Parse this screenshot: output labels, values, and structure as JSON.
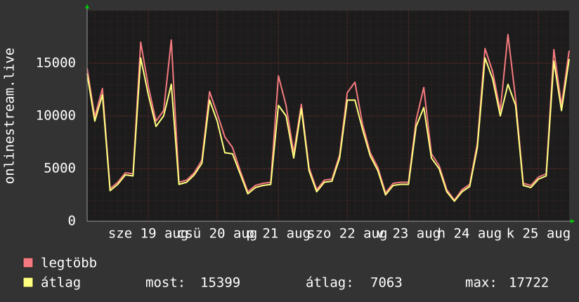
{
  "chart_data": {
    "type": "line",
    "y_label": "onlinestream.live",
    "categories": [
      null,
      null,
      null,
      null,
      null,
      null,
      null,
      null,
      "sze 19 aug",
      null,
      null,
      null,
      null,
      null,
      null,
      null,
      null,
      "csü 20 aug",
      null,
      null,
      null,
      null,
      null,
      null,
      null,
      "p 21 aug",
      null,
      null,
      null,
      null,
      null,
      null,
      null,
      null,
      "szo 22 aug",
      null,
      null,
      null,
      null,
      null,
      null,
      null,
      "v 23 aug",
      null,
      null,
      null,
      null,
      null,
      null,
      null,
      "h 24 aug",
      null,
      null,
      null,
      null,
      null,
      null,
      null,
      null,
      "k 25 aug",
      null,
      null,
      null,
      null
    ],
    "series": [
      {
        "name": "legtöbb",
        "color": "#f47a7f",
        "values": [
          14500,
          9900,
          12600,
          3100,
          3700,
          4600,
          4500,
          17000,
          12800,
          9500,
          10500,
          17200,
          3700,
          3900,
          4600,
          5800,
          12300,
          10200,
          8000,
          7000,
          4800,
          2800,
          3400,
          3600,
          3700,
          13800,
          11000,
          6500,
          11100,
          5100,
          3000,
          3900,
          4000,
          6300,
          12200,
          13200,
          9200,
          6500,
          5100,
          2700,
          3600,
          3700,
          3700,
          9600,
          12700,
          6400,
          5300,
          3000,
          2000,
          3000,
          3500,
          7400,
          16400,
          14200,
          10500,
          17722,
          11600,
          3600,
          3400,
          4200,
          4500,
          16300,
          11000,
          16200
        ]
      },
      {
        "name": "átlag",
        "color": "#ffff80",
        "values": [
          14000,
          9500,
          12000,
          2900,
          3500,
          4400,
          4300,
          15500,
          12000,
          9000,
          10000,
          13000,
          3500,
          3700,
          4400,
          5500,
          11500,
          9500,
          6500,
          6400,
          4500,
          2600,
          3200,
          3400,
          3500,
          11000,
          10000,
          6000,
          10700,
          4800,
          2800,
          3700,
          3800,
          6000,
          11500,
          11500,
          8700,
          6200,
          4800,
          2500,
          3400,
          3500,
          3500,
          9000,
          10800,
          6000,
          5000,
          2800,
          1900,
          2800,
          3300,
          7000,
          15500,
          13500,
          10000,
          13000,
          11000,
          3400,
          3200,
          4000,
          4300,
          15200,
          10500,
          15400
        ]
      }
    ],
    "ylim": [
      0,
      20000
    ],
    "yticks": [
      0,
      5000,
      10000,
      15000
    ],
    "grid": true,
    "stats": [
      {
        "label": "most:",
        "value": 15399
      },
      {
        "label": "átlag:",
        "value": 7063
      },
      {
        "label": "max:",
        "value": 17722
      }
    ]
  }
}
